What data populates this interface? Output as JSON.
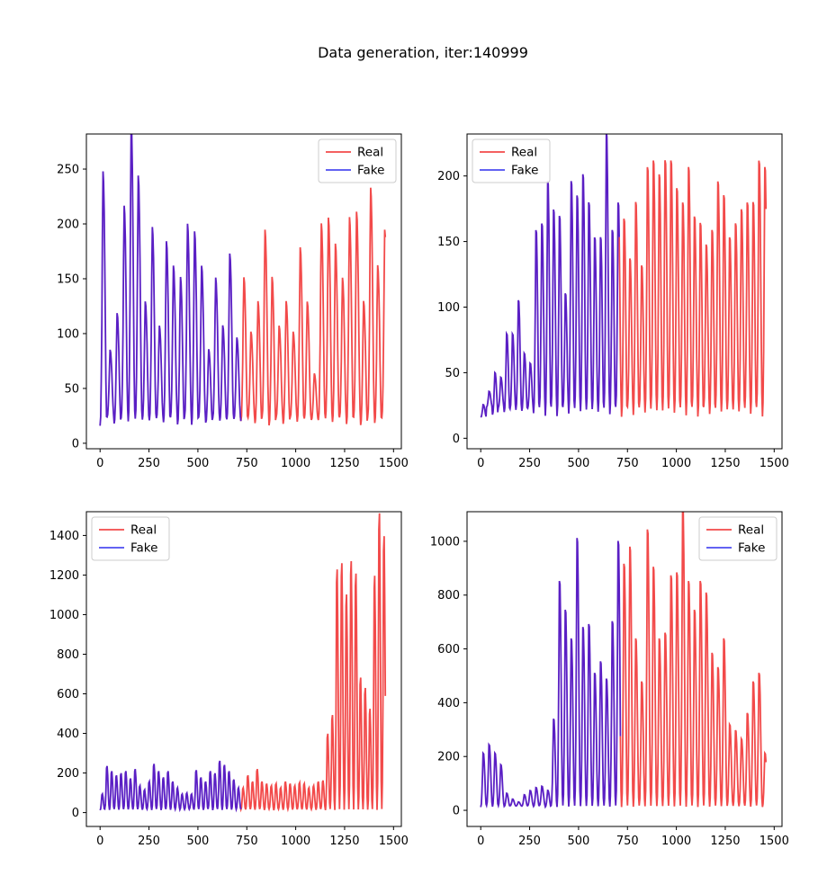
{
  "figure": {
    "title": "Data generation, iter:140999"
  },
  "colors": {
    "real": "#f24a4a",
    "fake": "#4d4df0",
    "overlap": "#5a1fc4"
  },
  "chart_data": [
    {
      "type": "line",
      "title": "",
      "xlabel": "",
      "ylabel": "",
      "xlim": [
        -70,
        1540
      ],
      "ylim": [
        -5,
        282
      ],
      "xticks": [
        0,
        250,
        500,
        750,
        1000,
        1250,
        1500
      ],
      "yticks": [
        0,
        50,
        100,
        150,
        200,
        250
      ],
      "legend_position": "upper-right",
      "series": [
        {
          "name": "Real",
          "x_range": [
            0,
            1460
          ],
          "period": 36,
          "baseline": 20,
          "peaks": [
            228,
            80,
            110,
            200,
            270,
            225,
            120,
            182,
            100,
            170,
            150,
            140,
            185,
            178,
            150,
            80,
            140,
            100,
            160,
            90,
            140,
            95,
            120,
            180,
            140,
            100,
            120,
            95,
            165,
            120,
            60,
            185,
            190,
            168,
            140,
            190,
            195,
            120,
            215,
            150,
            180,
            170,
            205,
            150,
            160,
            205,
            190,
            195,
            130,
            180,
            140,
            125,
            120,
            150,
            145,
            170,
            145,
            160,
            80,
            160
          ]
        },
        {
          "name": "Fake",
          "x_range": [
            0,
            720
          ],
          "period": 36,
          "baseline": 20,
          "peaks": [
            228,
            80,
            110,
            200,
            270,
            225,
            120,
            182,
            100,
            170,
            150,
            140,
            185,
            178,
            150,
            80,
            140,
            100,
            160,
            90,
            140,
            95,
            120,
            180,
            140,
            100,
            120,
            95,
            165,
            120
          ]
        }
      ]
    },
    {
      "type": "line",
      "title": "",
      "xlabel": "",
      "ylabel": "",
      "xlim": [
        -70,
        1540
      ],
      "ylim": [
        -8,
        232
      ],
      "xticks": [
        0,
        250,
        500,
        750,
        1000,
        1250,
        1500
      ],
      "yticks": [
        0,
        50,
        100,
        150,
        200
      ],
      "legend_position": "upper-left",
      "series": [
        {
          "name": "Real",
          "x_range": [
            0,
            1460
          ],
          "period": 30,
          "baseline": 20,
          "peaks": [
            25,
            35,
            48,
            45,
            76,
            76,
            100,
            62,
            55,
            150,
            155,
            185,
            165,
            160,
            105,
            185,
            175,
            190,
            170,
            145,
            145,
            220,
            150,
            170,
            158,
            130,
            170,
            125,
            195,
            200,
            190,
            200,
            200,
            180,
            170,
            195,
            160,
            155,
            140,
            150,
            185,
            175,
            145,
            155,
            165,
            170,
            170,
            200,
            195,
            180,
            170,
            175,
            160,
            150,
            180,
            140,
            195,
            145,
            205,
            150,
            180,
            175,
            195,
            160,
            180,
            190,
            220,
            165,
            175
          ]
        },
        {
          "name": "Fake",
          "x_range": [
            0,
            710
          ],
          "period": 30,
          "baseline": 20,
          "peaks": [
            25,
            35,
            48,
            45,
            76,
            76,
            100,
            62,
            55,
            150,
            155,
            185,
            165,
            160,
            105,
            185,
            175,
            190,
            170,
            145,
            145,
            220,
            150,
            170
          ]
        }
      ]
    },
    {
      "type": "line",
      "title": "",
      "xlabel": "",
      "ylabel": "",
      "xlim": [
        -70,
        1540
      ],
      "ylim": [
        -70,
        1520
      ],
      "xticks": [
        0,
        250,
        500,
        750,
        1000,
        1250,
        1500
      ],
      "yticks": [
        0,
        200,
        400,
        600,
        800,
        1000,
        1200,
        1400
      ],
      "legend_position": "upper-left",
      "series": [
        {
          "name": "Real",
          "x_range": [
            0,
            1460
          ],
          "period": 24,
          "baseline": 15,
          "peaks": [
            90,
            225,
            200,
            180,
            190,
            200,
            165,
            210,
            130,
            110,
            150,
            235,
            200,
            170,
            200,
            150,
            120,
            90,
            95,
            90,
            205,
            170,
            150,
            200,
            190,
            250,
            230,
            200,
            160,
            120,
            120,
            180,
            150,
            210,
            150,
            140,
            130,
            140,
            120,
            150,
            140,
            130,
            145,
            140,
            120,
            130,
            150,
            155,
            380,
            470,
            1170,
            1200,
            1050,
            1210,
            1150,
            650,
            600,
            500,
            1140,
            1440,
            1330,
            1320,
            960
          ]
        },
        {
          "name": "Fake",
          "x_range": [
            0,
            720
          ],
          "period": 24,
          "baseline": 15,
          "peaks": [
            90,
            225,
            200,
            180,
            190,
            200,
            165,
            210,
            130,
            110,
            150,
            235,
            200,
            170,
            200,
            150,
            120,
            90,
            95,
            90,
            205,
            170,
            150,
            200,
            190,
            250,
            230,
            200,
            160,
            120
          ]
        }
      ]
    },
    {
      "type": "line",
      "title": "",
      "xlabel": "",
      "ylabel": "",
      "xlim": [
        -70,
        1540
      ],
      "ylim": [
        -60,
        1110
      ],
      "xticks": [
        0,
        250,
        500,
        750,
        1000,
        1250,
        1500
      ],
      "yticks": [
        0,
        200,
        400,
        600,
        800,
        1000
      ],
      "legend_position": "upper-right",
      "series": [
        {
          "name": "Real",
          "x_range": [
            0,
            1460
          ],
          "period": 30,
          "baseline": 15,
          "peaks": [
            200,
            230,
            200,
            160,
            60,
            40,
            30,
            55,
            70,
            80,
            85,
            70,
            320,
            800,
            700,
            600,
            950,
            640,
            650,
            480,
            520,
            460,
            660,
            940,
            860,
            920,
            600,
            450,
            980,
            850,
            600,
            620,
            820,
            830,
            1070,
            800,
            700,
            800,
            760,
            550,
            500,
            600,
            300,
            280,
            250,
            340,
            450,
            480,
            200,
            380,
            650,
            740,
            810,
            900,
            860,
            590,
            470
          ]
        },
        {
          "name": "Fake",
          "x_range": [
            0,
            715
          ],
          "period": 30,
          "baseline": 15,
          "peaks": [
            200,
            230,
            200,
            160,
            60,
            40,
            30,
            55,
            70,
            80,
            85,
            70,
            320,
            800,
            700,
            600,
            950,
            640,
            650,
            480,
            520,
            460,
            660,
            940
          ]
        }
      ]
    }
  ]
}
